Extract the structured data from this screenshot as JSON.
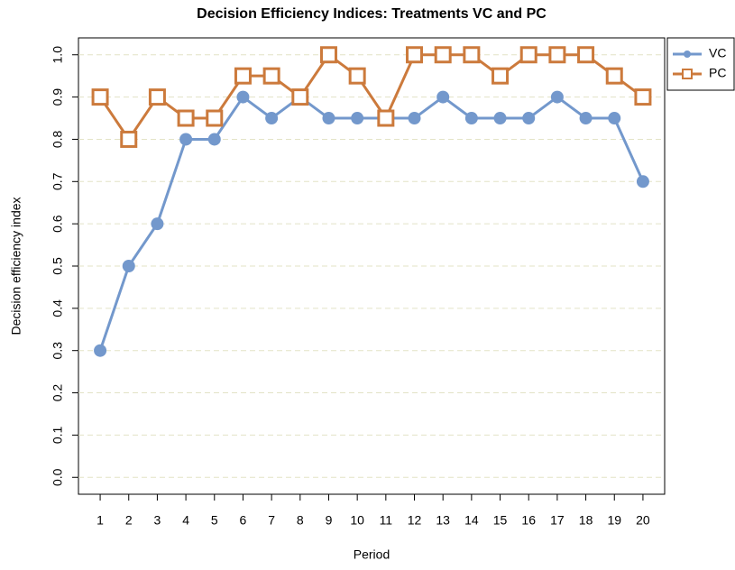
{
  "chart_data": {
    "type": "line",
    "title": "Decision Efficiency Indices: Treatments VC and PC",
    "x_label": "Period",
    "y_label": "Decision efficiency index",
    "x": [
      1,
      2,
      3,
      4,
      5,
      6,
      7,
      8,
      9,
      10,
      11,
      12,
      13,
      14,
      15,
      16,
      17,
      18,
      19,
      20
    ],
    "series": [
      {
        "name": "VC",
        "color": "#7398cc",
        "marker": "circle",
        "values": [
          0.3,
          0.5,
          0.6,
          0.8,
          0.8,
          0.9,
          0.85,
          0.9,
          0.85,
          0.85,
          0.85,
          0.85,
          0.9,
          0.85,
          0.85,
          0.85,
          0.9,
          0.85,
          0.85,
          0.7
        ]
      },
      {
        "name": "PC",
        "color": "#cc7a3c",
        "marker": "square",
        "values": [
          0.9,
          0.8,
          0.9,
          0.85,
          0.85,
          0.95,
          0.95,
          0.9,
          1.0,
          0.95,
          0.85,
          1.0,
          1.0,
          1.0,
          0.95,
          1.0,
          1.0,
          1.0,
          0.95,
          0.9
        ]
      }
    ],
    "xlim": [
      0.24,
      20.76
    ],
    "xticks": [
      1,
      2,
      3,
      4,
      5,
      6,
      7,
      8,
      9,
      10,
      11,
      12,
      13,
      14,
      15,
      16,
      17,
      18,
      19,
      20
    ],
    "ylim": [
      -0.04,
      1.04
    ],
    "yticks": [
      {
        "value": 0,
        "label": "0.0"
      },
      0.1,
      0.2,
      0.3,
      0.4,
      0.5,
      0.6,
      0.7,
      0.8,
      0.9,
      {
        "value": 1,
        "label": "1.0"
      }
    ],
    "grid": true,
    "legend": "top-right-outside"
  }
}
